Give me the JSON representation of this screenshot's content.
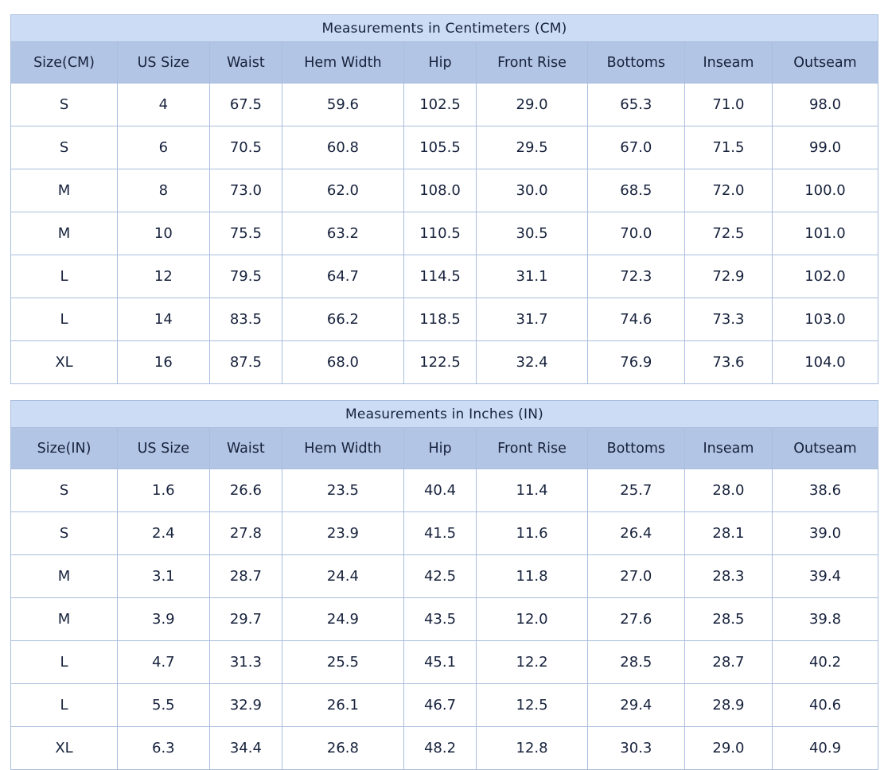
{
  "colors": {
    "title_bg": "#ccdcf4",
    "header_bg": "#b3c5e4",
    "row_bg": "#ffffff",
    "grid_border": "#a9bedd",
    "outer_border": "#8da3c3",
    "text": "#17223c"
  },
  "tables": [
    {
      "title": "Measurements in Centimeters (CM)",
      "columns": [
        "Size(CM)",
        "US Size",
        "Waist",
        "Hem Width",
        "Hip",
        "Front Rise",
        "Bottoms",
        "Inseam",
        "Outseam"
      ],
      "rows": [
        [
          "S",
          "4",
          "67.5",
          "59.6",
          "102.5",
          "29.0",
          "65.3",
          "71.0",
          "98.0"
        ],
        [
          "S",
          "6",
          "70.5",
          "60.8",
          "105.5",
          "29.5",
          "67.0",
          "71.5",
          "99.0"
        ],
        [
          "M",
          "8",
          "73.0",
          "62.0",
          "108.0",
          "30.0",
          "68.5",
          "72.0",
          "100.0"
        ],
        [
          "M",
          "10",
          "75.5",
          "63.2",
          "110.5",
          "30.5",
          "70.0",
          "72.5",
          "101.0"
        ],
        [
          "L",
          "12",
          "79.5",
          "64.7",
          "114.5",
          "31.1",
          "72.3",
          "72.9",
          "102.0"
        ],
        [
          "L",
          "14",
          "83.5",
          "66.2",
          "118.5",
          "31.7",
          "74.6",
          "73.3",
          "103.0"
        ],
        [
          "XL",
          "16",
          "87.5",
          "68.0",
          "122.5",
          "32.4",
          "76.9",
          "73.6",
          "104.0"
        ]
      ]
    },
    {
      "title": "Measurements in Inches (IN)",
      "columns": [
        "Size(IN)",
        "US Size",
        "Waist",
        "Hem Width",
        "Hip",
        "Front Rise",
        "Bottoms",
        "Inseam",
        "Outseam"
      ],
      "rows": [
        [
          "S",
          "1.6",
          "26.6",
          "23.5",
          "40.4",
          "11.4",
          "25.7",
          "28.0",
          "38.6"
        ],
        [
          "S",
          "2.4",
          "27.8",
          "23.9",
          "41.5",
          "11.6",
          "26.4",
          "28.1",
          "39.0"
        ],
        [
          "M",
          "3.1",
          "28.7",
          "24.4",
          "42.5",
          "11.8",
          "27.0",
          "28.3",
          "39.4"
        ],
        [
          "M",
          "3.9",
          "29.7",
          "24.9",
          "43.5",
          "12.0",
          "27.6",
          "28.5",
          "39.8"
        ],
        [
          "L",
          "4.7",
          "31.3",
          "25.5",
          "45.1",
          "12.2",
          "28.5",
          "28.7",
          "40.2"
        ],
        [
          "L",
          "5.5",
          "32.9",
          "26.1",
          "46.7",
          "12.5",
          "29.4",
          "28.9",
          "40.6"
        ],
        [
          "XL",
          "6.3",
          "34.4",
          "26.8",
          "48.2",
          "12.8",
          "30.3",
          "29.0",
          "40.9"
        ]
      ]
    }
  ]
}
